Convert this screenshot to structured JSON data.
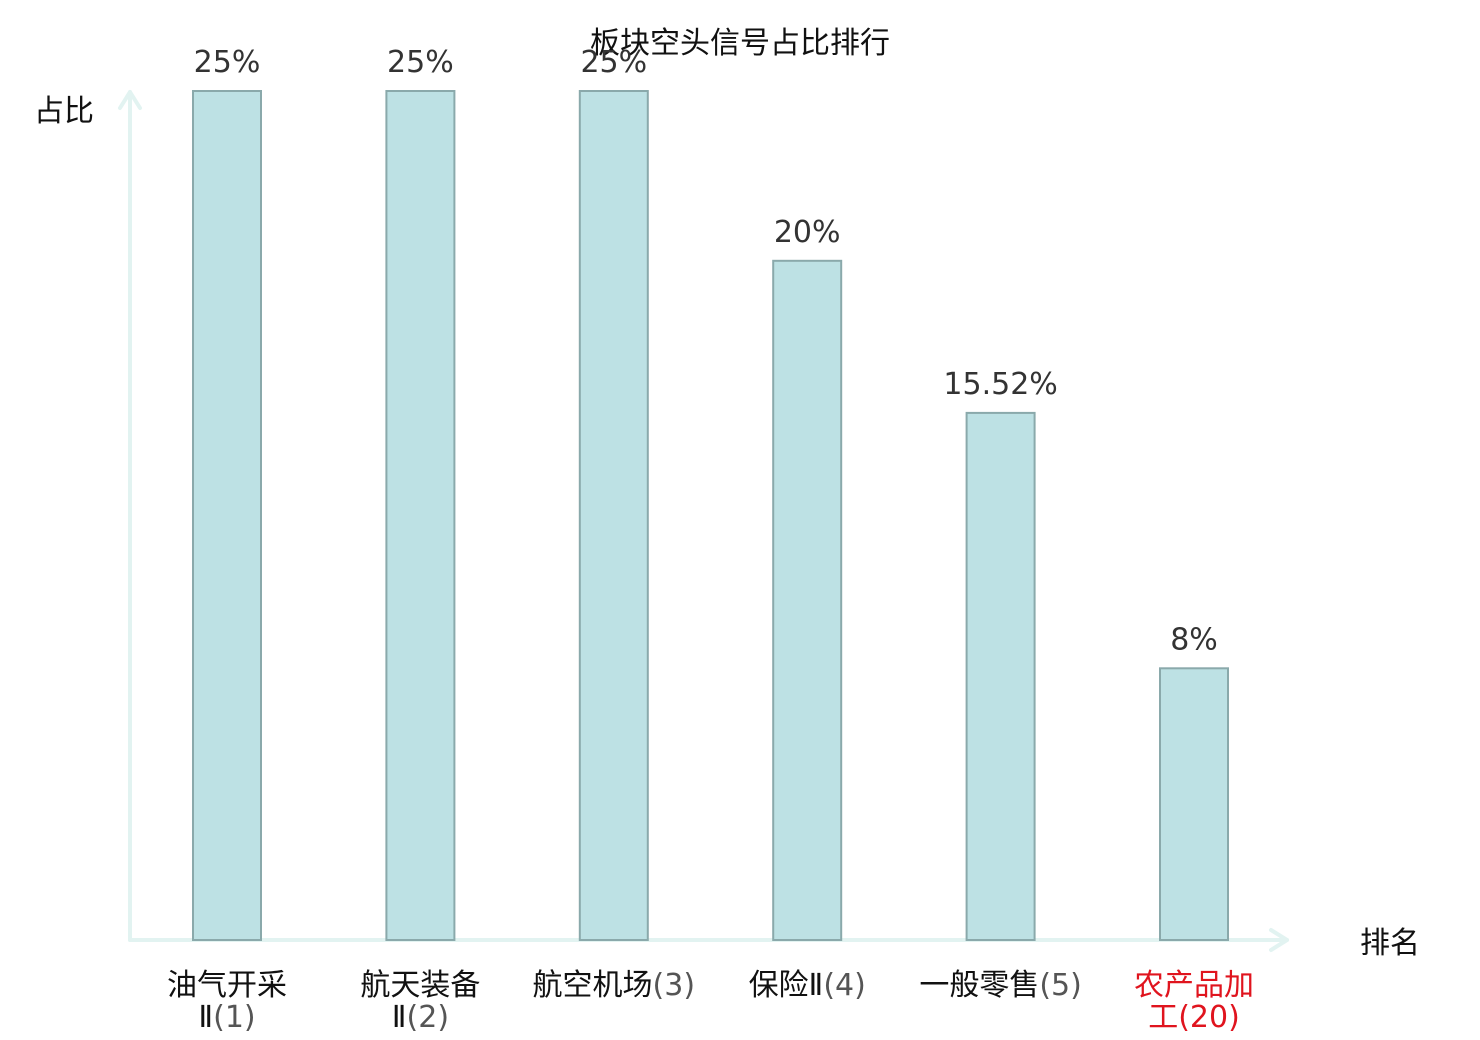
{
  "chart_data": {
    "type": "bar",
    "title": "板块空头信号占比排行",
    "ylabel": "占比",
    "xlabel": "排名",
    "ylim": [
      0,
      25
    ],
    "grid": false,
    "legend": "none",
    "bar_color": "#bde1e4",
    "bar_stroke": "#8aa9ab",
    "axis_color": "#e2f3f1",
    "highlight_color": "#e0141e",
    "categories": [
      {
        "lines": [
          {
            "text": "油气开采",
            "rank": ""
          },
          {
            "text": "Ⅱ",
            "rank": "(1)"
          }
        ],
        "highlight": false
      },
      {
        "lines": [
          {
            "text": "航天装备",
            "rank": ""
          },
          {
            "text": "Ⅱ",
            "rank": "(2)"
          }
        ],
        "highlight": false
      },
      {
        "lines": [
          {
            "text": "航空机场",
            "rank": "(3)"
          }
        ],
        "highlight": false
      },
      {
        "lines": [
          {
            "text": "保险Ⅱ",
            "rank": "(4)"
          }
        ],
        "highlight": false
      },
      {
        "lines": [
          {
            "text": "一般零售",
            "rank": "(5)"
          }
        ],
        "highlight": false
      },
      {
        "lines": [
          {
            "text": "农产品加",
            "rank": ""
          },
          {
            "text": "工",
            "rank": "(20)"
          }
        ],
        "highlight": true
      }
    ],
    "values": [
      25,
      25,
      25,
      20,
      15.52,
      8
    ],
    "value_labels": [
      "25%",
      "25%",
      "25%",
      "20%",
      "15.52%",
      "8%"
    ]
  }
}
